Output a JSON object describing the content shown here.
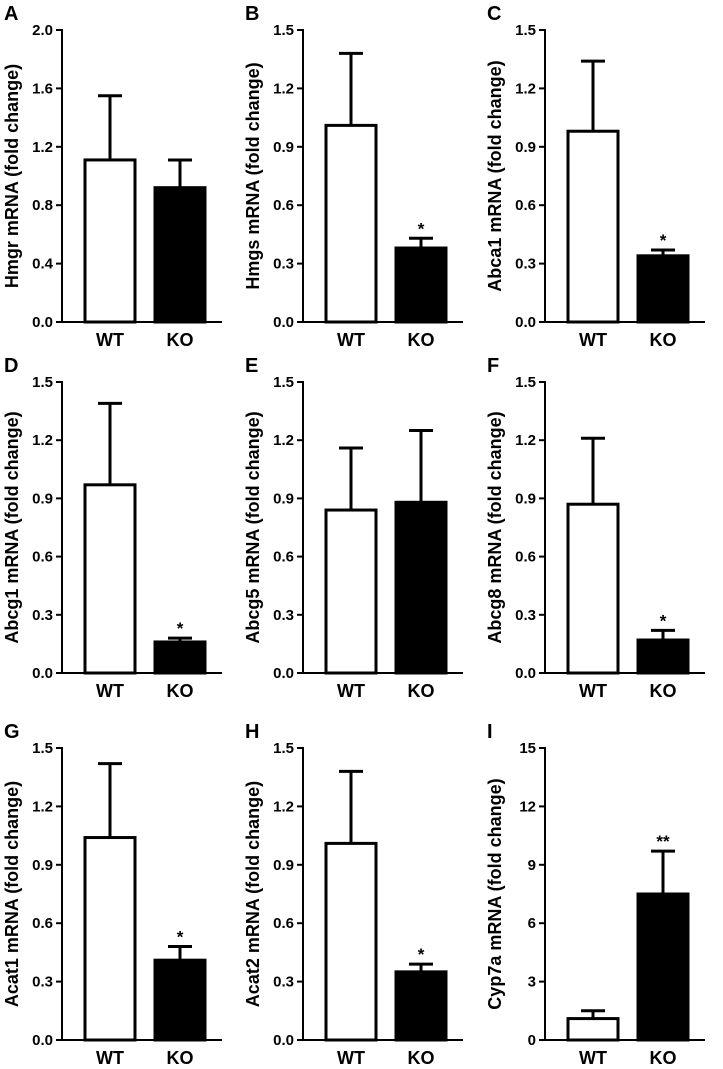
{
  "figure": {
    "background": "#ffffff",
    "ink": "#000000"
  },
  "chart_data": [
    {
      "panel": "A",
      "type": "bar",
      "categories": [
        "WT",
        "KO"
      ],
      "values": [
        1.11,
        0.92
      ],
      "errors": [
        0.44,
        0.19
      ],
      "significance": [
        "",
        ""
      ],
      "bar_colors": [
        "#ffffff",
        "#000000"
      ],
      "ylabel": "Hmgr mRNA (fold change)",
      "ylim": [
        0,
        2.0
      ],
      "yticks": [
        "0.0",
        "0.4",
        "0.8",
        "1.2",
        "1.6",
        "2.0"
      ]
    },
    {
      "panel": "B",
      "type": "bar",
      "categories": [
        "WT",
        "KO"
      ],
      "values": [
        1.01,
        0.38
      ],
      "errors": [
        0.37,
        0.05
      ],
      "significance": [
        "",
        "*"
      ],
      "bar_colors": [
        "#ffffff",
        "#000000"
      ],
      "ylabel": "Hmgs mRNA (fold change)",
      "ylim": [
        0,
        1.5
      ],
      "yticks": [
        "0.0",
        "0.3",
        "0.6",
        "0.9",
        "1.2",
        "1.5"
      ]
    },
    {
      "panel": "C",
      "type": "bar",
      "categories": [
        "WT",
        "KO"
      ],
      "values": [
        0.98,
        0.34
      ],
      "errors": [
        0.36,
        0.03
      ],
      "significance": [
        "",
        "*"
      ],
      "bar_colors": [
        "#ffffff",
        "#000000"
      ],
      "ylabel": "Abca1 mRNA (fold change)",
      "ylim": [
        0,
        1.5
      ],
      "yticks": [
        "0.0",
        "0.3",
        "0.6",
        "0.9",
        "1.2",
        "1.5"
      ]
    },
    {
      "panel": "D",
      "type": "bar",
      "categories": [
        "WT",
        "KO"
      ],
      "values": [
        0.97,
        0.16
      ],
      "errors": [
        0.42,
        0.02
      ],
      "significance": [
        "",
        "*"
      ],
      "bar_colors": [
        "#ffffff",
        "#000000"
      ],
      "ylabel": "Abcg1 mRNA (fold change)",
      "ylim": [
        0,
        1.5
      ],
      "yticks": [
        "0.0",
        "0.3",
        "0.6",
        "0.9",
        "1.2",
        "1.5"
      ]
    },
    {
      "panel": "E",
      "type": "bar",
      "categories": [
        "WT",
        "KO"
      ],
      "values": [
        0.84,
        0.88
      ],
      "errors": [
        0.32,
        0.37
      ],
      "significance": [
        "",
        ""
      ],
      "bar_colors": [
        "#ffffff",
        "#000000"
      ],
      "ylabel": "Abcg5 mRNA (fold change)",
      "ylim": [
        0,
        1.5
      ],
      "yticks": [
        "0.0",
        "0.3",
        "0.6",
        "0.9",
        "1.2",
        "1.5"
      ]
    },
    {
      "panel": "F",
      "type": "bar",
      "categories": [
        "WT",
        "KO"
      ],
      "values": [
        0.87,
        0.17
      ],
      "errors": [
        0.34,
        0.05
      ],
      "significance": [
        "",
        "*"
      ],
      "bar_colors": [
        "#ffffff",
        "#000000"
      ],
      "ylabel": "Abcg8 mRNA (fold change)",
      "ylim": [
        0,
        1.5
      ],
      "yticks": [
        "0.0",
        "0.3",
        "0.6",
        "0.9",
        "1.2",
        "1.5"
      ]
    },
    {
      "panel": "G",
      "type": "bar",
      "categories": [
        "WT",
        "KO"
      ],
      "values": [
        1.04,
        0.41
      ],
      "errors": [
        0.38,
        0.07
      ],
      "significance": [
        "",
        "*"
      ],
      "bar_colors": [
        "#ffffff",
        "#000000"
      ],
      "ylabel": "Acat1 mRNA (fold change)",
      "ylim": [
        0,
        1.5
      ],
      "yticks": [
        "0.0",
        "0.3",
        "0.6",
        "0.9",
        "1.2",
        "1.5"
      ]
    },
    {
      "panel": "H",
      "type": "bar",
      "categories": [
        "WT",
        "KO"
      ],
      "values": [
        1.01,
        0.35
      ],
      "errors": [
        0.37,
        0.04
      ],
      "significance": [
        "",
        "*"
      ],
      "bar_colors": [
        "#ffffff",
        "#000000"
      ],
      "ylabel": "Acat2 mRNA (fold change)",
      "ylim": [
        0,
        1.5
      ],
      "yticks": [
        "0.0",
        "0.3",
        "0.6",
        "0.9",
        "1.2",
        "1.5"
      ]
    },
    {
      "panel": "I",
      "type": "bar",
      "categories": [
        "WT",
        "KO"
      ],
      "values": [
        1.1,
        7.5
      ],
      "errors": [
        0.4,
        2.2
      ],
      "significance": [
        "",
        "**"
      ],
      "bar_colors": [
        "#ffffff",
        "#000000"
      ],
      "ylabel": "Cyp7a mRNA (fold change)",
      "ylim": [
        0,
        15
      ],
      "yticks": [
        "0",
        "3",
        "6",
        "9",
        "12",
        "15"
      ]
    }
  ]
}
